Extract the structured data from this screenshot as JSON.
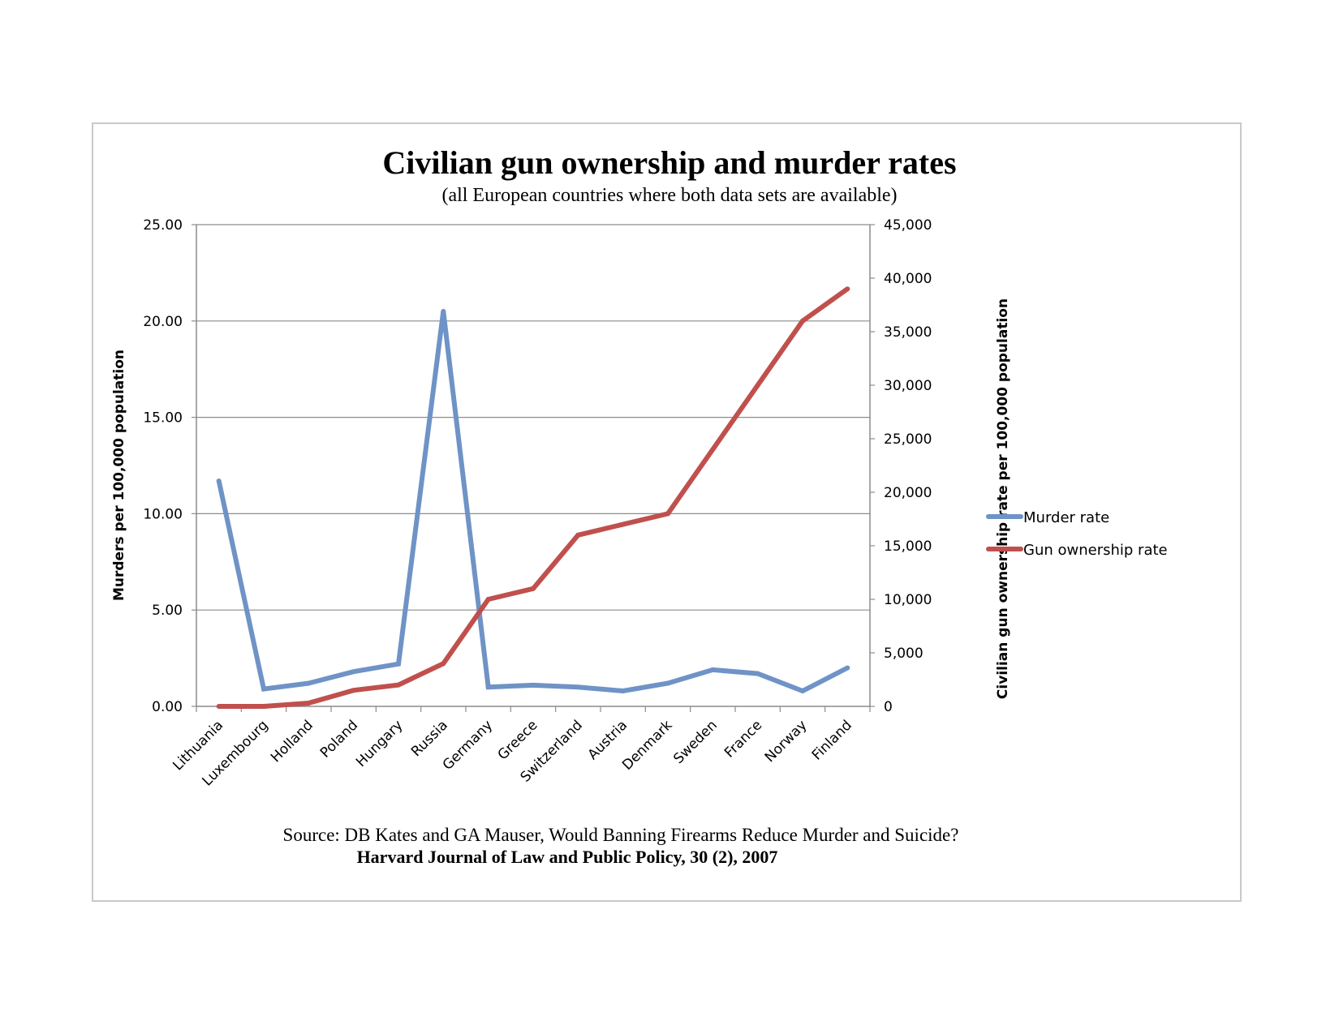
{
  "chart_data": {
    "type": "line",
    "title": "Civilian gun ownership and murder rates",
    "subtitle": "(all European countries where both data sets are available)",
    "categories": [
      "Lithuania",
      "Luxembourg",
      "Holland",
      "Poland",
      "Hungary",
      "Russia",
      "Germany",
      "Greece",
      "Switzerland",
      "Austria",
      "Denmark",
      "Sweden",
      "France",
      "Norway",
      "Finland"
    ],
    "y_left": {
      "label": "Murders per 100,000 population",
      "range": [
        0,
        25
      ],
      "ticks": [
        "0.00",
        "5.00",
        "10.00",
        "15.00",
        "20.00",
        "25.00"
      ]
    },
    "y_right": {
      "label": "Civilian gun ownership rate per 100,000 population",
      "range": [
        0,
        45000
      ],
      "ticks": [
        "0",
        "5,000",
        "10,000",
        "15,000",
        "20,000",
        "25,000",
        "30,000",
        "35,000",
        "40,000",
        "45,000"
      ]
    },
    "grid": true,
    "legend_position": "right",
    "series": [
      {
        "name": "Murder rate",
        "axis": "left",
        "color": "#6f93c6",
        "values": [
          11.7,
          0.9,
          1.2,
          1.8,
          2.2,
          20.5,
          1.0,
          1.1,
          1.0,
          0.8,
          1.2,
          1.9,
          1.7,
          0.8,
          2.0
        ]
      },
      {
        "name": "Gun ownership rate",
        "axis": "right",
        "color": "#c0504d",
        "values": [
          0,
          0,
          300,
          1500,
          2000,
          4000,
          10000,
          11000,
          16000,
          17000,
          18000,
          24000,
          30000,
          36000,
          39000
        ]
      }
    ],
    "source_line1": "Source: DB Kates and GA Mauser, Would Banning Firearms Reduce Murder and Suicide?",
    "source_line2": "Harvard Journal of Law and Public Policy, 30 (2), 2007"
  }
}
